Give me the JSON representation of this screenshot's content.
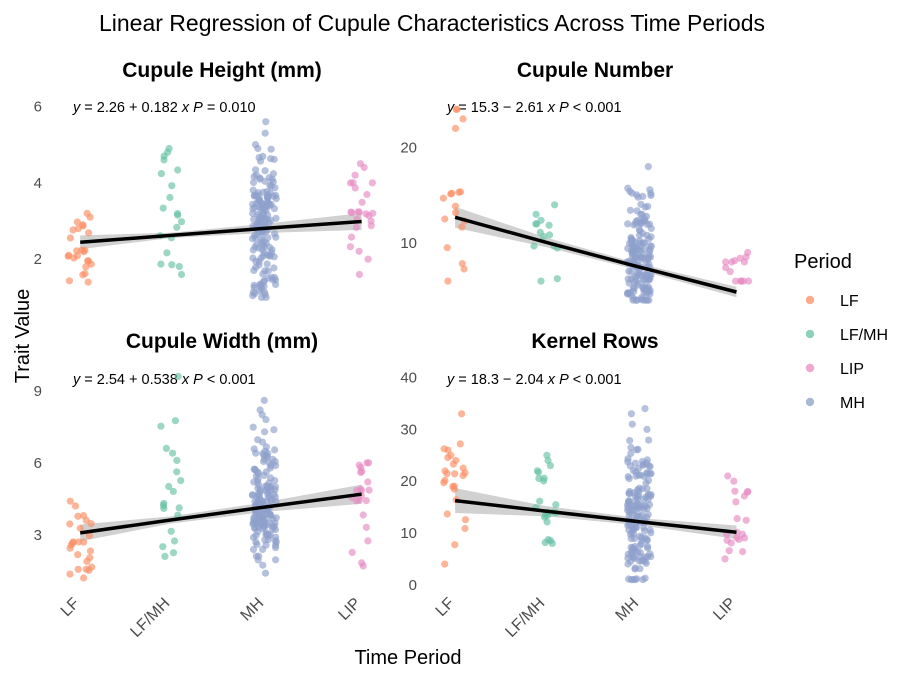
{
  "chart_data": {
    "type": "scatter",
    "title": "Linear Regression of Cupule Characteristics Across Time Periods",
    "xlabel": "Time Period",
    "ylabel": "Trait Value",
    "categories": [
      "LF",
      "LF/MH",
      "MH",
      "LIP"
    ],
    "legend": {
      "title": "Period",
      "placement": "right",
      "entries": [
        {
          "label": "LF",
          "color": "#FC8D62"
        },
        {
          "label": "LF/MH",
          "color": "#66C2A5"
        },
        {
          "label": "LIP",
          "color": "#E78AC3"
        },
        {
          "label": "MH",
          "color": "#8DA0CB"
        }
      ]
    },
    "grid": false,
    "panels": [
      {
        "title": "Cupule Height (mm)",
        "equation": {
          "intercept": "2.26",
          "sign": "+",
          "slope": "0.182",
          "p_op": "=",
          "p_value": "0.010"
        },
        "fit": {
          "intercept": 2.26,
          "slope": 0.182,
          "ci": [
            0.18,
            0.07,
            0.12,
            0.22
          ]
        },
        "ylim": [
          0.8,
          6.3
        ],
        "yticks": [
          2,
          4,
          6
        ],
        "groups": [
          {
            "category": "LF",
            "count": 25,
            "min": 1.4,
            "max": 3.2,
            "top": [
              3.2,
              3.1,
              2.9,
              2.8
            ]
          },
          {
            "category": "LF/MH",
            "count": 20,
            "min": 1.6,
            "max": 4.9,
            "top": [
              4.9,
              4.8,
              4.7,
              4.6
            ]
          },
          {
            "category": "MH",
            "count": 160,
            "min": 1.0,
            "max": 5.6,
            "top": [
              5.6,
              5.3,
              5.0,
              4.9
            ]
          },
          {
            "category": "LIP",
            "count": 25,
            "min": 1.6,
            "max": 4.5,
            "top": [
              4.5,
              4.4,
              4.2,
              4.0
            ]
          }
        ]
      },
      {
        "title": "Cupule Number",
        "equation": {
          "intercept": "15.3",
          "sign": "−",
          "slope": "2.61",
          "p_op": "<",
          "p_value": "0.001"
        },
        "fit": {
          "intercept": 15.3,
          "slope": -2.61,
          "ci": [
            1.1,
            0.5,
            0.35,
            0.55
          ]
        },
        "ylim": [
          3.5,
          25.5
        ],
        "yticks": [
          10,
          20
        ],
        "groups": [
          {
            "category": "LF",
            "count": 18,
            "min": 6,
            "max": 24,
            "top": [
              24,
              24,
              23,
              22
            ]
          },
          {
            "category": "LF/MH",
            "count": 14,
            "min": 6,
            "max": 14,
            "top": [
              14,
              13,
              12,
              12
            ]
          },
          {
            "category": "MH",
            "count": 160,
            "min": 4,
            "max": 18,
            "top": [
              18,
              13,
              13,
              12
            ]
          },
          {
            "category": "LIP",
            "count": 14,
            "min": 6,
            "max": 9,
            "top": [
              9,
              8,
              8,
              8
            ]
          }
        ]
      },
      {
        "title": "Cupule Width (mm)",
        "equation": {
          "intercept": "2.54",
          "sign": "+",
          "slope": "0.538",
          "p_op": "<",
          "p_value": "0.001"
        },
        "fit": {
          "intercept": 2.54,
          "slope": 0.538,
          "ci": [
            0.35,
            0.15,
            0.2,
            0.4
          ]
        },
        "ylim": [
          0.7,
          10.2
        ],
        "yticks": [
          3,
          6,
          9
        ],
        "groups": [
          {
            "category": "LF",
            "count": 25,
            "min": 1.2,
            "max": 4.4,
            "top": [
              4.4,
              4.2,
              3.8,
              3.6
            ]
          },
          {
            "category": "LF/MH",
            "count": 20,
            "min": 2.1,
            "max": 9.6,
            "top": [
              9.6,
              6.6,
              6.4,
              6.1
            ]
          },
          {
            "category": "MH",
            "count": 160,
            "min": 1.4,
            "max": 8.6,
            "top": [
              8.6,
              8.2,
              8.0,
              7.8
            ]
          },
          {
            "category": "LIP",
            "count": 22,
            "min": 1.7,
            "max": 6.0,
            "top": [
              6.0,
              5.9,
              5.8,
              5.6
            ]
          }
        ]
      },
      {
        "title": "Kernel Rows",
        "equation": {
          "intercept": "18.3",
          "sign": "−",
          "slope": "2.04",
          "p_op": "<",
          "p_value": "0.001"
        },
        "fit": {
          "intercept": 18.3,
          "slope": -2.04,
          "ci": [
            2.4,
            1.0,
            0.7,
            1.3
          ]
        },
        "ylim": [
          -1,
          43
        ],
        "yticks": [
          0,
          10,
          20,
          30,
          40
        ],
        "groups": [
          {
            "category": "LF",
            "count": 25,
            "min": 4,
            "max": 33,
            "top": [
              33,
              26,
              25,
              24
            ]
          },
          {
            "category": "LF/MH",
            "count": 22,
            "min": 8,
            "max": 25,
            "top": [
              25,
              24,
              23,
              22
            ]
          },
          {
            "category": "MH",
            "count": 160,
            "min": 1,
            "max": 34,
            "top": [
              34,
              33,
              31,
              30
            ]
          },
          {
            "category": "LIP",
            "count": 20,
            "min": 5,
            "max": 21,
            "top": [
              21,
              20,
              18,
              16
            ]
          }
        ]
      }
    ]
  }
}
